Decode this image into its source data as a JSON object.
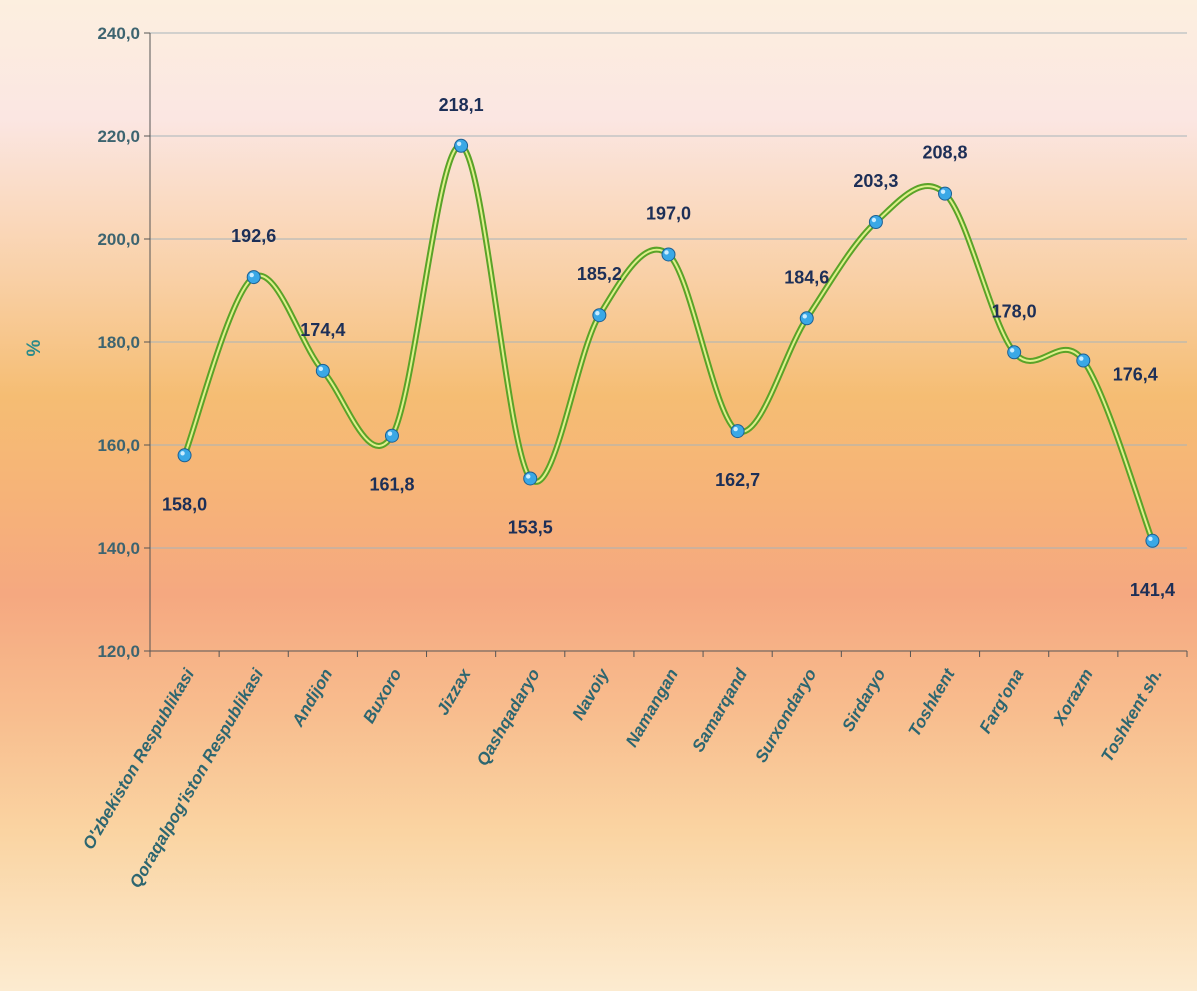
{
  "chart_data": {
    "type": "line",
    "title": "",
    "xlabel": "",
    "ylabel": "%",
    "ylim": [
      120,
      240
    ],
    "yticks": [
      "120,0",
      "140,0",
      "160,0",
      "180,0",
      "200,0",
      "220,0",
      "240,0"
    ],
    "grid": true,
    "smooth": true,
    "categories": [
      "O'zbekiston Respublikasi",
      "Qoraqalpog'iston Respublikasi",
      "Andijon",
      "Buxoro",
      "Jizzax",
      "Qashqadaryo",
      "Navoiy",
      "Namangan",
      "Samarqand",
      "Surxondaryo",
      "Sirdaryo",
      "Toshkent",
      "Farg'ona",
      "Xorazm",
      "Toshkent sh."
    ],
    "series": [
      {
        "values": [
          158.0,
          192.6,
          174.4,
          161.8,
          218.1,
          153.5,
          185.2,
          197.0,
          162.7,
          184.6,
          203.3,
          208.8,
          178.0,
          176.4,
          141.4
        ],
        "labels": [
          "158,0",
          "192,6",
          "174,4",
          "161,8",
          "218,1",
          "153,5",
          "185,2",
          "197,0",
          "162,7",
          "184,6",
          "203,3",
          "208,8",
          "178,0",
          "176,4",
          "141,4"
        ],
        "color": "#5aa328"
      }
    ]
  },
  "colors": {
    "line": "#5aa328",
    "line_core": "#dff08c",
    "marker": "#3aa8e6",
    "axis_text": "#3d6470",
    "label_text": "#1d2f57"
  }
}
